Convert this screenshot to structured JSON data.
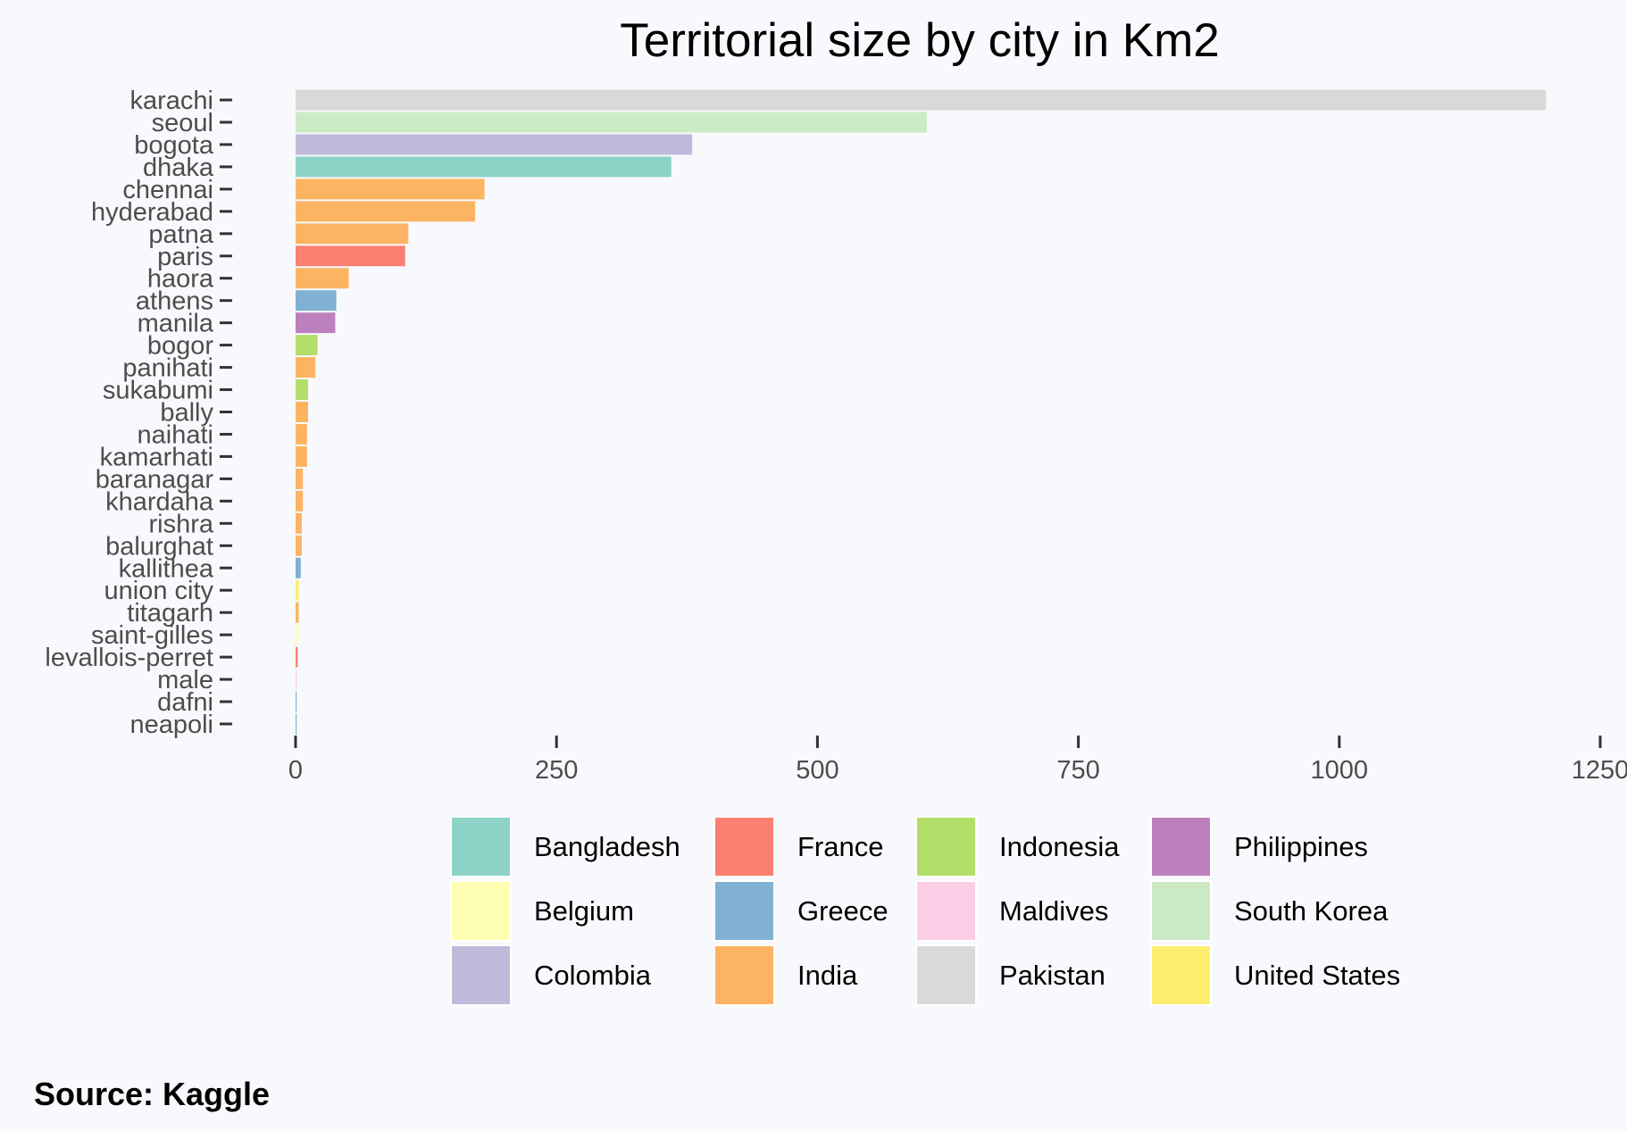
{
  "chart_data": {
    "type": "bar",
    "orientation": "horizontal",
    "title": "Territorial size by city in Km2",
    "caption": "Source: Kaggle",
    "xlabel": "",
    "ylabel": "",
    "xlim": [
      0,
      1250
    ],
    "xticks": [
      0,
      250,
      500,
      750,
      1000,
      1250
    ],
    "xtick_labels": [
      "0",
      "250",
      "500",
      "750",
      "1000",
      "1250"
    ],
    "grid": false,
    "legend_position": "bottom",
    "categories": [
      "karachi",
      "seoul",
      "bogota",
      "dhaka",
      "chennai",
      "hyderabad",
      "patna",
      "paris",
      "haora",
      "athens",
      "manila",
      "bogor",
      "panihati",
      "sukabumi",
      "bally",
      "naihati",
      "kamarhati",
      "baranagar",
      "khardaha",
      "rishra",
      "balurghat",
      "kallithea",
      "union city",
      "titagarh",
      "saint-gilles",
      "levallois-perret",
      "male",
      "dafni",
      "neapoli"
    ],
    "values": [
      1198,
      605,
      380,
      360,
      181,
      172,
      108,
      105,
      51,
      39,
      38,
      21,
      19,
      12,
      12,
      11,
      11,
      7,
      7,
      6,
      6,
      5,
      3,
      3,
      2,
      2,
      1,
      1,
      1
    ],
    "groups": [
      "Pakistan",
      "South Korea",
      "Colombia",
      "Bangladesh",
      "India",
      "India",
      "India",
      "France",
      "India",
      "Greece",
      "Philippines",
      "Indonesia",
      "India",
      "Indonesia",
      "India",
      "India",
      "India",
      "India",
      "India",
      "India",
      "India",
      "Greece",
      "United States",
      "India",
      "Belgium",
      "France",
      "Maldives",
      "Greece",
      "Greece"
    ],
    "legend": [
      {
        "name": "Bangladesh",
        "color": "#8dd3c7"
      },
      {
        "name": "Belgium",
        "color": "#ffffb3"
      },
      {
        "name": "Colombia",
        "color": "#bebada"
      },
      {
        "name": "France",
        "color": "#fb8072"
      },
      {
        "name": "Greece",
        "color": "#80b1d3"
      },
      {
        "name": "India",
        "color": "#fdb462"
      },
      {
        "name": "Indonesia",
        "color": "#b3de69"
      },
      {
        "name": "Maldives",
        "color": "#fccde5"
      },
      {
        "name": "Pakistan",
        "color": "#d9d9d9"
      },
      {
        "name": "Philippines",
        "color": "#bc80bd"
      },
      {
        "name": "South Korea",
        "color": "#ccebc5"
      },
      {
        "name": "United States",
        "color": "#ffed6f"
      }
    ]
  }
}
